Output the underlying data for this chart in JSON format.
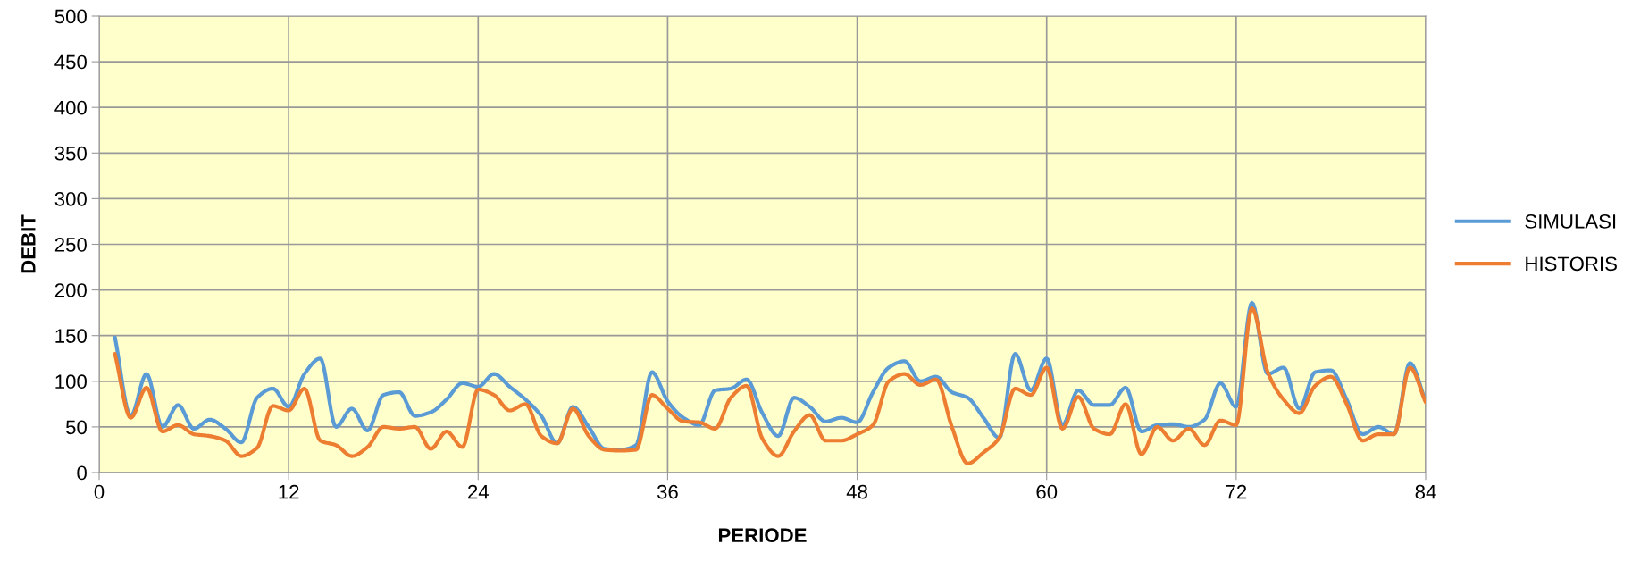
{
  "chart_data": {
    "type": "line",
    "xlabel": "PERIODE",
    "ylabel": "DEBIT",
    "x": [
      1,
      2,
      3,
      4,
      5,
      6,
      7,
      8,
      9,
      10,
      11,
      12,
      13,
      14,
      15,
      16,
      17,
      18,
      19,
      20,
      21,
      22,
      23,
      24,
      25,
      26,
      27,
      28,
      29,
      30,
      31,
      32,
      33,
      34,
      35,
      36,
      37,
      38,
      39,
      40,
      41,
      42,
      43,
      44,
      45,
      46,
      47,
      48,
      49,
      50,
      51,
      52,
      53,
      54,
      55,
      56,
      57,
      58,
      59,
      60,
      61,
      62,
      63,
      64,
      65,
      66,
      67,
      68,
      69,
      70,
      71,
      72,
      73,
      74,
      75,
      76,
      77,
      78,
      79,
      80,
      81,
      82,
      83,
      84
    ],
    "series": [
      {
        "name": "SIMULASI",
        "color": "#5b9bd5",
        "values": [
          148,
          62,
          108,
          50,
          74,
          48,
          58,
          48,
          33,
          82,
          92,
          72,
          108,
          125,
          50,
          70,
          46,
          85,
          88,
          62,
          66,
          80,
          98,
          94,
          108,
          94,
          80,
          62,
          32,
          72,
          50,
          26,
          25,
          30,
          110,
          78,
          60,
          52,
          90,
          92,
          102,
          65,
          40,
          82,
          72,
          56,
          60,
          55,
          88,
          115,
          122,
          100,
          105,
          88,
          82,
          60,
          38,
          130,
          90,
          125,
          52,
          90,
          74,
          74,
          93,
          45,
          52,
          53,
          50,
          58,
          98,
          72,
          186,
          108,
          115,
          70,
          110,
          112,
          80,
          42,
          50,
          42,
          120,
          78
        ]
      },
      {
        "name": "HISTORIS",
        "color": "#ed7d31",
        "values": [
          130,
          60,
          93,
          45,
          52,
          42,
          40,
          35,
          18,
          27,
          73,
          68,
          92,
          35,
          30,
          18,
          28,
          50,
          48,
          50,
          26,
          45,
          28,
          91,
          85,
          68,
          75,
          40,
          32,
          70,
          40,
          25,
          24,
          25,
          85,
          70,
          56,
          55,
          48,
          82,
          95,
          37,
          18,
          45,
          63,
          35,
          35,
          42,
          52,
          100,
          108,
          96,
          102,
          50,
          10,
          22,
          38,
          92,
          85,
          115,
          48,
          83,
          48,
          42,
          75,
          20,
          50,
          35,
          48,
          30,
          57,
          52,
          180,
          110,
          80,
          65,
          95,
          105,
          75,
          35,
          42,
          42,
          115,
          77
        ]
      }
    ],
    "xlim": [
      0,
      84
    ],
    "xticks": [
      0,
      12,
      24,
      36,
      48,
      60,
      72,
      84
    ],
    "ylim": [
      0,
      500
    ],
    "yticks": [
      0,
      50,
      100,
      150,
      200,
      250,
      300,
      350,
      400,
      450,
      500
    ],
    "grid": true,
    "legend": "right",
    "marker": "none",
    "line_style": "solid"
  }
}
